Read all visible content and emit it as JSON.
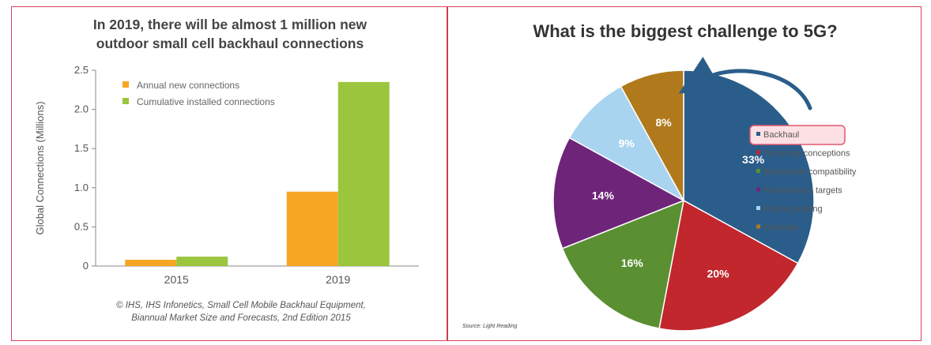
{
  "colors": {
    "border": "#d6455e",
    "annual": "#f6a623",
    "cumulative": "#9bc53d",
    "backhaul": "#2b5d8a",
    "too_many": "#c1272d",
    "backwards": "#5a8f32",
    "performance": "#6e2479",
    "future": "#a8d4ef",
    "similarity": "#b07a1c",
    "highlight_fill": "#fde0e3",
    "highlight_border": "#e05a6e"
  },
  "chart_data": [
    {
      "type": "bar",
      "title": "In 2019, there will be almost 1 million new outdoor small cell backhaul connections",
      "title_lines": [
        "In 2019, there will be almost 1 million new",
        "outdoor small cell backhaul connections"
      ],
      "categories": [
        "2015",
        "2019"
      ],
      "series": [
        {
          "name": "Annual new connections",
          "values": [
            0.08,
            0.95
          ]
        },
        {
          "name": "Cumulative installed connections",
          "values": [
            0.12,
            2.35
          ]
        }
      ],
      "ylabel": "Global Connections (Millions)",
      "ylim": [
        0,
        2.5
      ],
      "yticks": [
        0,
        0.5,
        1.0,
        1.5,
        2.0,
        2.5
      ],
      "ytick_labels": [
        "0",
        "0.5",
        "1.0",
        "1.5",
        "2.0",
        "2.5"
      ],
      "legend_position": "top-left",
      "grid": false,
      "source_lines": [
        "© IHS, IHS Infonetics, Small Cell Mobile Backhaul Equipment,",
        "Biannual Market Size and Forecasts, 2nd Edition 2015"
      ]
    },
    {
      "type": "pie",
      "title": "What is the biggest challenge to 5G?",
      "slices": [
        {
          "label": "Backhaul",
          "value": 33,
          "value_label": "33%"
        },
        {
          "label": "Too many conceptions",
          "value": 20,
          "value_label": "20%"
        },
        {
          "label": "Backwards compatibility",
          "value": 16,
          "value_label": "16%"
        },
        {
          "label": "Performance targets",
          "value": 14,
          "value_label": "14%"
        },
        {
          "label": "Future proofing",
          "value": 9,
          "value_label": "9%"
        },
        {
          "label": "Similarity",
          "value": 8,
          "value_label": "8%"
        }
      ],
      "highlighted": "Backhaul",
      "legend_position": "right",
      "source": "Source: Light Reading"
    }
  ]
}
